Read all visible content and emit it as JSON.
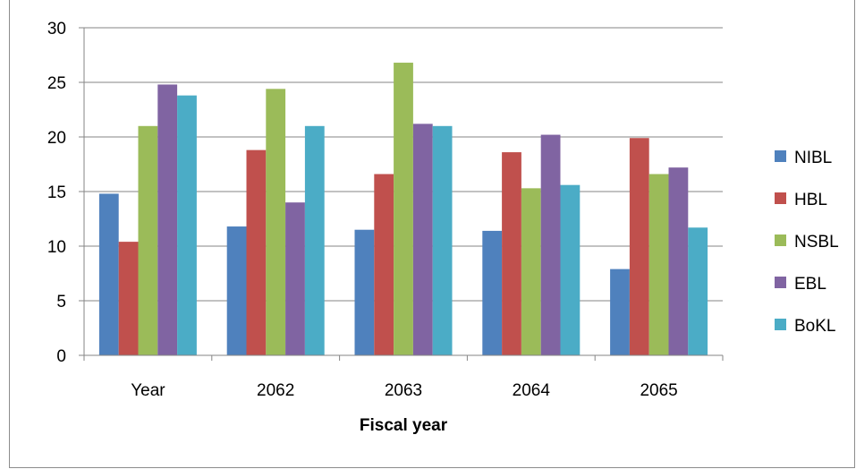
{
  "chart_data": {
    "type": "bar",
    "title": "",
    "xlabel": "Fiscal year",
    "ylabel": "",
    "categories": [
      "Year",
      "2062",
      "2063",
      "2064",
      "2065"
    ],
    "ylim": [
      0,
      30
    ],
    "yticks": [
      0,
      5,
      10,
      15,
      20,
      25,
      30
    ],
    "grid": true,
    "legend_position": "right",
    "series": [
      {
        "name": "NIBL",
        "color": "#4F81BD",
        "values": [
          14.8,
          11.8,
          11.5,
          11.4,
          7.9
        ]
      },
      {
        "name": "HBL",
        "color": "#C0504D",
        "values": [
          10.4,
          18.8,
          16.6,
          18.6,
          19.9
        ]
      },
      {
        "name": "NSBL",
        "color": "#9BBB59",
        "values": [
          21.0,
          24.4,
          26.8,
          15.3,
          16.6
        ]
      },
      {
        "name": "EBL",
        "color": "#8064A2",
        "values": [
          24.8,
          14.0,
          21.2,
          20.2,
          17.2
        ]
      },
      {
        "name": "BoKL",
        "color": "#4BACC6",
        "values": [
          23.8,
          21.0,
          21.0,
          15.6,
          11.7
        ]
      }
    ]
  }
}
